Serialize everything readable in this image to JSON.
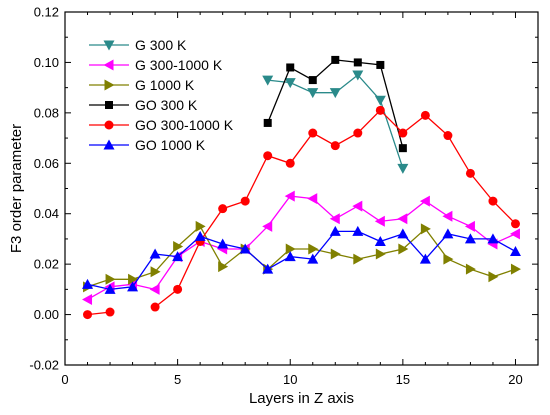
{
  "chart_data": {
    "type": "line",
    "title": "",
    "xlabel": "Layers in Z axis",
    "ylabel": "F3 order parameter",
    "xlim": [
      0,
      21
    ],
    "ylim": [
      -0.02,
      0.12
    ],
    "xticks": [
      0,
      5,
      10,
      15,
      20
    ],
    "yticks": [
      -0.02,
      0.0,
      0.02,
      0.04,
      0.06,
      0.08,
      0.1,
      0.12
    ],
    "ytick_labels": [
      "-0.02",
      "0.00",
      "0.02",
      "0.04",
      "0.06",
      "0.08",
      "0.10",
      "0.12"
    ],
    "grid": false,
    "legend_position": "top-left",
    "series": [
      {
        "name": "G 300 K",
        "color": "#2a8a8a",
        "marker": "triangle-down",
        "points": [
          [
            9,
            0.093
          ],
          [
            10,
            0.092
          ],
          [
            11,
            0.088
          ],
          [
            12,
            0.088
          ],
          [
            13,
            0.095
          ],
          [
            14,
            0.085
          ],
          [
            15,
            0.058
          ]
        ]
      },
      {
        "name": "G 300-1000 K",
        "color": "#ff00ff",
        "marker": "triangle-left",
        "points": [
          [
            1,
            0.006
          ],
          [
            2,
            0.011
          ],
          [
            3,
            0.012
          ],
          [
            4,
            0.01
          ],
          [
            5,
            0.023
          ],
          [
            6,
            0.029
          ],
          [
            7,
            0.026
          ],
          [
            8,
            0.026
          ],
          [
            9,
            0.035
          ],
          [
            10,
            0.047
          ],
          [
            11,
            0.046
          ],
          [
            12,
            0.038
          ],
          [
            13,
            0.043
          ],
          [
            14,
            0.037
          ],
          [
            15,
            0.038
          ],
          [
            16,
            0.045
          ],
          [
            17,
            0.039
          ],
          [
            18,
            0.035
          ],
          [
            19,
            0.028
          ],
          [
            20,
            0.032
          ]
        ]
      },
      {
        "name": "G 1000 K",
        "color": "#808000",
        "marker": "triangle-right",
        "points": [
          [
            1,
            0.011
          ],
          [
            2,
            0.014
          ],
          [
            3,
            0.014
          ],
          [
            4,
            0.017
          ],
          [
            5,
            0.027
          ],
          [
            6,
            0.035
          ],
          [
            7,
            0.019
          ],
          [
            8,
            0.026
          ],
          [
            9,
            0.018
          ],
          [
            10,
            0.026
          ],
          [
            11,
            0.026
          ],
          [
            12,
            0.024
          ],
          [
            13,
            0.022
          ],
          [
            14,
            0.024
          ],
          [
            15,
            0.026
          ],
          [
            16,
            0.034
          ],
          [
            17,
            0.022
          ],
          [
            18,
            0.018
          ],
          [
            19,
            0.015
          ],
          [
            20,
            0.018
          ]
        ]
      },
      {
        "name": "GO 300 K",
        "color": "#000000",
        "marker": "square",
        "points": [
          [
            9,
            0.076
          ],
          [
            10,
            0.098
          ],
          [
            11,
            0.093
          ],
          [
            12,
            0.101
          ],
          [
            13,
            0.1
          ],
          [
            14,
            0.099
          ],
          [
            15,
            0.066
          ]
        ]
      },
      {
        "name": "GO 300-1000 K",
        "color": "#ff0000",
        "marker": "circle",
        "segments": [
          [
            [
              1,
              0.0
            ],
            [
              2,
              0.001
            ]
          ],
          [
            [
              4,
              0.003
            ],
            [
              5,
              0.01
            ],
            [
              6,
              0.029
            ],
            [
              7,
              0.042
            ],
            [
              8,
              0.045
            ],
            [
              9,
              0.063
            ],
            [
              10,
              0.06
            ],
            [
              11,
              0.072
            ],
            [
              12,
              0.067
            ],
            [
              13,
              0.072
            ],
            [
              14,
              0.081
            ],
            [
              15,
              0.072
            ],
            [
              16,
              0.079
            ],
            [
              17,
              0.071
            ],
            [
              18,
              0.056
            ],
            [
              19,
              0.045
            ],
            [
              20,
              0.036
            ]
          ]
        ]
      },
      {
        "name": "GO 1000 K",
        "color": "#0000ff",
        "marker": "triangle-up",
        "points": [
          [
            1,
            0.012
          ],
          [
            2,
            0.01
          ],
          [
            3,
            0.011
          ],
          [
            4,
            0.024
          ],
          [
            5,
            0.023
          ],
          [
            6,
            0.031
          ],
          [
            7,
            0.028
          ],
          [
            8,
            0.026
          ],
          [
            9,
            0.018
          ],
          [
            10,
            0.023
          ],
          [
            11,
            0.022
          ],
          [
            12,
            0.033
          ],
          [
            13,
            0.033
          ],
          [
            14,
            0.029
          ],
          [
            15,
            0.032
          ],
          [
            16,
            0.022
          ],
          [
            17,
            0.032
          ],
          [
            18,
            0.03
          ],
          [
            19,
            0.03
          ],
          [
            20,
            0.025
          ]
        ]
      }
    ]
  }
}
